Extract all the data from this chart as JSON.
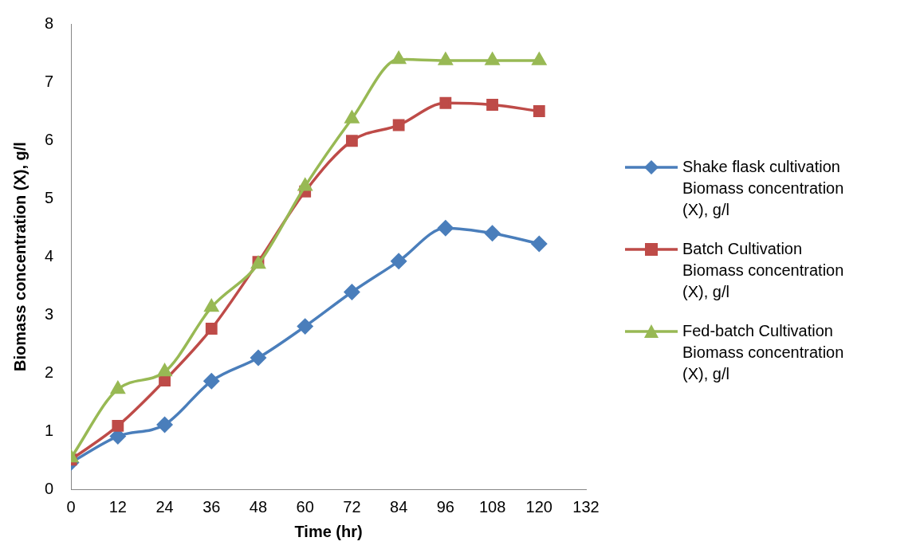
{
  "chart_data": {
    "type": "line",
    "xlabel": "Time (hr)",
    "ylabel": "Biomass concentration (X), g/l",
    "x": [
      0,
      12,
      24,
      36,
      48,
      60,
      72,
      84,
      96,
      108,
      120
    ],
    "xlim": [
      0,
      132
    ],
    "xticks": [
      0,
      12,
      24,
      36,
      48,
      60,
      72,
      84,
      96,
      108,
      120,
      132
    ],
    "ylim": [
      0,
      8
    ],
    "yticks": [
      0,
      1,
      2,
      3,
      4,
      5,
      6,
      7,
      8
    ],
    "grid": false,
    "legend": "right",
    "line_style": "solid",
    "series": [
      {
        "name": "Shake flask cultivation Biomass concentration (X), g/l",
        "color": "#4a7ebb",
        "marker": "diamond",
        "values": [
          0.46,
          0.91,
          1.11,
          1.86,
          2.26,
          2.8,
          3.39,
          3.92,
          4.49,
          4.4,
          4.22
        ]
      },
      {
        "name": "Batch Cultivation Biomass concentration (X), g/l",
        "color": "#be4b48",
        "marker": "square",
        "values": [
          0.51,
          1.09,
          1.87,
          2.76,
          3.91,
          5.12,
          5.99,
          6.26,
          6.64,
          6.61,
          6.5
        ]
      },
      {
        "name": "Fed-batch Cultivation Biomass concentration (X), g/l",
        "color": "#98b954",
        "marker": "triangle",
        "values": [
          0.54,
          1.72,
          2.02,
          3.13,
          3.87,
          5.21,
          6.37,
          7.39,
          7.37,
          7.37,
          7.37
        ]
      }
    ]
  }
}
